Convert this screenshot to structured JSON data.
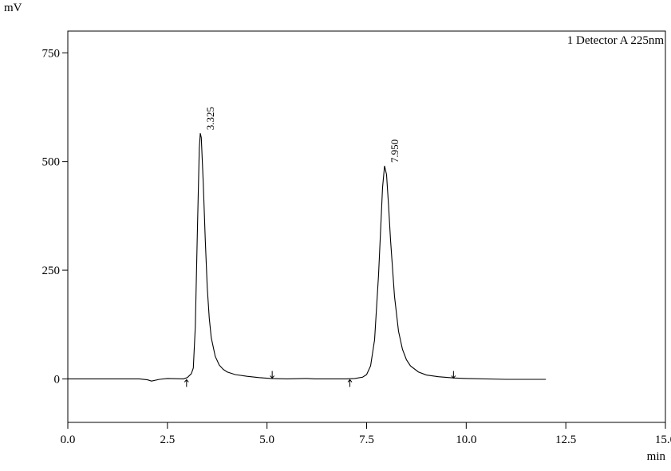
{
  "chart_data": {
    "type": "line",
    "y_label": "mV",
    "x_label": "min",
    "legend": "1 Detector A 225nm",
    "color": "#000000",
    "x": [
      0,
      1.8,
      2.0,
      2.1,
      2.3,
      2.5,
      2.9,
      3.0,
      3.1,
      3.15,
      3.2,
      3.25,
      3.3,
      3.325,
      3.35,
      3.4,
      3.45,
      3.5,
      3.55,
      3.6,
      3.7,
      3.8,
      3.9,
      4.0,
      4.2,
      4.5,
      4.8,
      5.1,
      5.5,
      6.0,
      6.2,
      7.0,
      7.2,
      7.4,
      7.5,
      7.6,
      7.7,
      7.8,
      7.85,
      7.9,
      7.95,
      8.0,
      8.05,
      8.1,
      8.2,
      8.3,
      8.4,
      8.5,
      8.6,
      8.8,
      9.0,
      9.3,
      9.7,
      10.0,
      11.0,
      12.0
    ],
    "values": [
      0,
      0,
      -2,
      -5,
      -1,
      1,
      0,
      3,
      12,
      25,
      120,
      330,
      530,
      565,
      555,
      450,
      320,
      210,
      140,
      95,
      52,
      32,
      22,
      16,
      10,
      6,
      3,
      1,
      0,
      1,
      0,
      0,
      1,
      4,
      10,
      30,
      90,
      240,
      340,
      440,
      490,
      470,
      400,
      320,
      190,
      110,
      68,
      44,
      30,
      16,
      9,
      5,
      2,
      1,
      -1,
      -1
    ],
    "annotations": [
      {
        "text": "3.325",
        "x": 3.325,
        "y": 565
      },
      {
        "text": "7.950",
        "x": 7.95,
        "y": 490
      }
    ],
    "baseline_marks": [
      2.98,
      5.13,
      7.08,
      9.68
    ],
    "xlim": [
      0,
      15
    ],
    "ylim": [
      -100,
      800
    ],
    "xticks": [
      {
        "value": 0,
        "label": "0.0"
      },
      2.5,
      {
        "value": 5,
        "label": "5.0"
      },
      7.5,
      {
        "value": 10,
        "label": "10.0"
      },
      12.5,
      {
        "value": 15,
        "label": "15.0"
      }
    ],
    "yticks": [
      0,
      250,
      500,
      750
    ]
  }
}
